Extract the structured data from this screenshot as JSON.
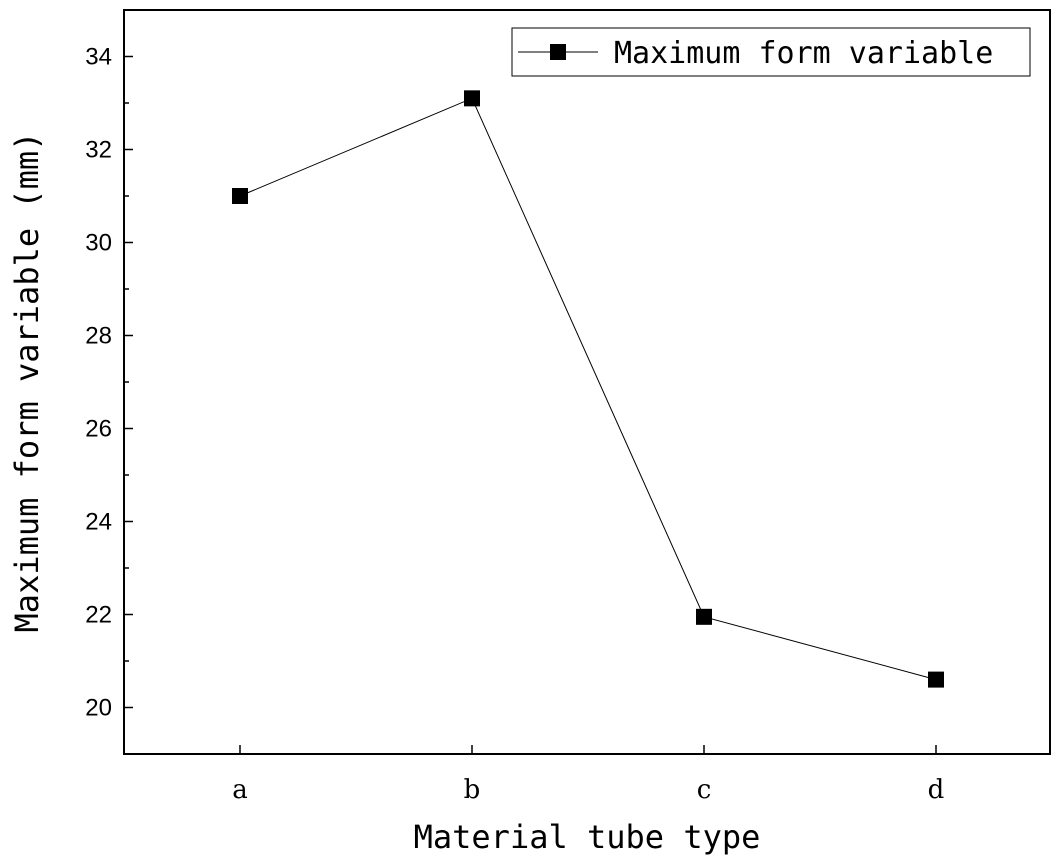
{
  "chart_data": {
    "type": "line",
    "categories": [
      "a",
      "b",
      "c",
      "d"
    ],
    "series": [
      {
        "name": "Maximum form variable",
        "values": [
          31.0,
          33.1,
          21.95,
          20.6
        ],
        "color": "#000000",
        "marker": "square"
      }
    ],
    "xlabel": "Material tube type",
    "ylabel": "Maximum form variable (mm)",
    "ylim": [
      19,
      35
    ],
    "yticks": [
      20,
      22,
      24,
      26,
      28,
      30,
      32,
      34
    ],
    "legend": "top-right",
    "grid": false
  }
}
